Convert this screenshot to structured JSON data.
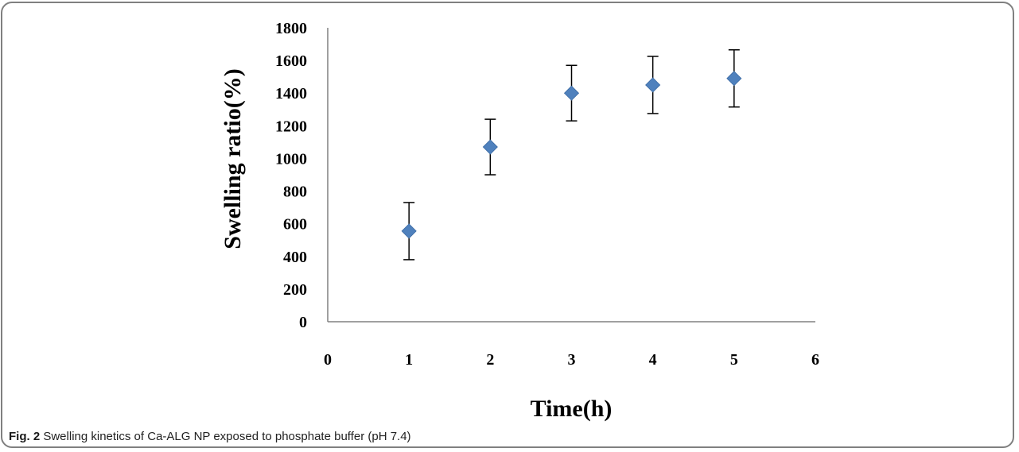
{
  "caption": {
    "label": "Fig. 2",
    "text": "Swelling kinetics of Ca-ALG NP exposed to phosphate buffer (pH 7.4)"
  },
  "chart_data": {
    "type": "scatter",
    "xlabel": "Time(h)",
    "ylabel": "Swelling ratio(%)",
    "xlim": [
      0,
      6
    ],
    "ylim": [
      0,
      1800
    ],
    "xticks": [
      "0",
      "1",
      "2",
      "3",
      "4",
      "5",
      "6"
    ],
    "yticks": [
      "0",
      "200",
      "400",
      "600",
      "800",
      "1000",
      "1200",
      "1400",
      "1600",
      "1800"
    ],
    "grid": false,
    "legend": "none",
    "marker": "diamond",
    "marker_color": "#4f81bd",
    "series": [
      {
        "x": [
          1,
          2,
          3,
          4,
          5
        ],
        "y": [
          555,
          1070,
          1400,
          1450,
          1490
        ],
        "error": [
          175,
          170,
          170,
          175,
          175
        ]
      }
    ]
  }
}
